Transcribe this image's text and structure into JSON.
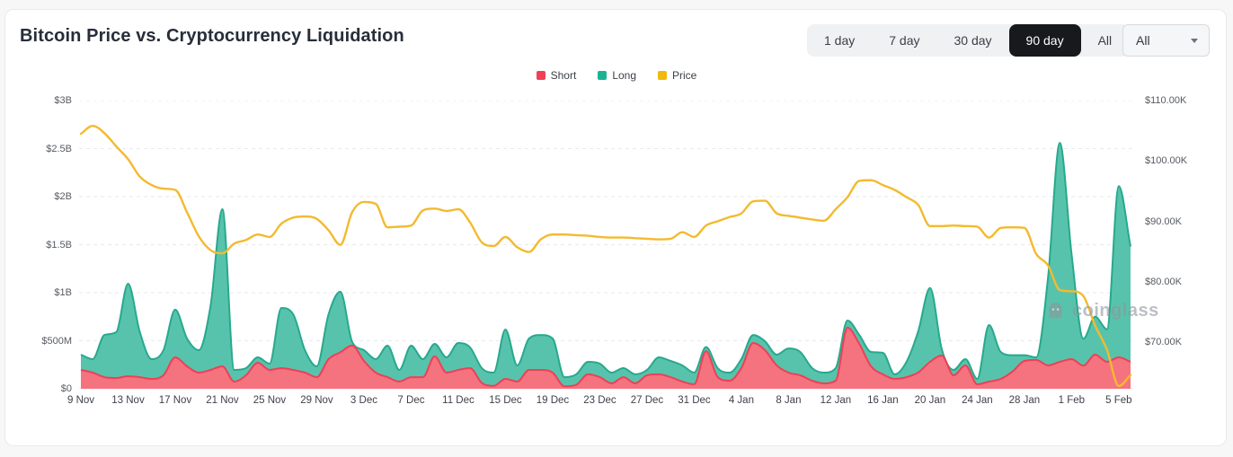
{
  "header": {
    "title": "Bitcoin Price vs. Cryptocurrency Liquidation"
  },
  "toolbar": {
    "ranges": [
      {
        "label": "1 day",
        "active": false
      },
      {
        "label": "7 day",
        "active": false
      },
      {
        "label": "30 day",
        "active": false
      },
      {
        "label": "90 day",
        "active": true
      },
      {
        "label": "All",
        "active": false
      }
    ],
    "dropdown_value": "All"
  },
  "legend": {
    "items": [
      {
        "label": "Short",
        "color": "#f04056"
      },
      {
        "label": "Long",
        "color": "#1cb394"
      },
      {
        "label": "Price",
        "color": "#f0b90b"
      }
    ]
  },
  "watermark": {
    "text": "coinglass"
  },
  "chart_data": {
    "type": "area",
    "title": "Bitcoin Price vs. Cryptocurrency Liquidation",
    "stacked": true,
    "grid": "horizontal-dashed",
    "left_axis": {
      "labels": [
        "$3B",
        "$2.5B",
        "$2B",
        "$1.5B",
        "$1B",
        "$500M",
        "$0"
      ],
      "values_usd_millions": [
        3000,
        2500,
        2000,
        1500,
        1000,
        500,
        0
      ]
    },
    "right_axis": {
      "labels": [
        "$110.00K",
        "$100.00K",
        "$90.00K",
        "$80.00K",
        "$70.00K"
      ],
      "values_usd_thousands": [
        110,
        100,
        90,
        80,
        70
      ]
    },
    "x_ticks": {
      "labels": [
        "9 Nov",
        "13 Nov",
        "17 Nov",
        "21 Nov",
        "25 Nov",
        "29 Nov",
        "3 Dec",
        "7 Dec",
        "11 Dec",
        "15 Dec",
        "19 Dec",
        "23 Dec",
        "27 Dec",
        "31 Dec",
        "4 Jan",
        "8 Jan",
        "12 Jan",
        "16 Jan",
        "20 Jan",
        "24 Jan",
        "28 Jan",
        "1 Feb",
        "5 Feb"
      ],
      "day_indices": [
        0,
        4,
        8,
        12,
        16,
        20,
        24,
        28,
        32,
        36,
        40,
        44,
        48,
        52,
        56,
        60,
        64,
        68,
        72,
        76,
        80,
        84,
        88
      ]
    },
    "series": [
      {
        "name": "Short",
        "axis": "left",
        "unit": "USD millions",
        "stroke": "#ee4056",
        "fill": "#f4737f",
        "values": [
          196,
          168,
          121,
          112,
          131,
          121,
          103,
          140,
          327,
          234,
          168,
          196,
          234,
          75,
          140,
          271,
          196,
          215,
          196,
          168,
          121,
          308,
          380,
          450,
          290,
          168,
          121,
          75,
          121,
          121,
          337,
          168,
          196,
          215,
          60,
          30,
          103,
          75,
          196,
          196,
          168,
          25,
          40,
          150,
          121,
          56,
          121,
          56,
          140,
          150,
          121,
          75,
          47,
          390,
          121,
          84,
          215,
          477,
          402,
          243,
          168,
          140,
          84,
          56,
          84,
          636,
          467,
          234,
          150,
          103,
          121,
          170,
          280,
          346,
          140,
          243,
          47,
          75,
          103,
          180,
          290,
          300,
          243,
          280,
          308,
          240,
          355,
          280,
          327,
          280
        ]
      },
      {
        "name": "Long",
        "axis": "left",
        "unit": "USD millions",
        "stack_on": "Short",
        "stroke": "#27a98d",
        "fill": "#58c3ac",
        "values": [
          159,
          140,
          439,
          478,
          962,
          469,
          205,
          262,
          496,
          289,
          234,
          673,
          1635,
          121,
          75,
          56,
          66,
          626,
          580,
          234,
          113,
          468,
          630,
          40,
          112,
          140,
          328,
          121,
          328,
          187,
          130,
          159,
          281,
          215,
          155,
          138,
          514,
          168,
          327,
          364,
          355,
          96,
          110,
          130,
          141,
          112,
          94,
          94,
          56,
          177,
          169,
          168,
          121,
          45,
          94,
          84,
          93,
          83,
          93,
          112,
          252,
          243,
          131,
          112,
          131,
          74,
          93,
          149,
          224,
          47,
          159,
          430,
          770,
          64,
          56,
          65,
          56,
          589,
          280,
          170,
          60,
          27,
          907,
          2280,
          1092,
          280,
          395,
          340,
          1783,
          1200
        ]
      },
      {
        "name": "Price",
        "axis": "right",
        "unit": "USD thousands",
        "stroke": "#f3ba2f",
        "values": [
          104.5,
          105.8,
          104.6,
          102.4,
          100.3,
          97.4,
          96.0,
          95.4,
          95.2,
          91.5,
          87.5,
          85.2,
          84.7,
          86.3,
          86.9,
          87.8,
          87.4,
          89.6,
          90.6,
          90.8,
          90.4,
          88.5,
          86.1,
          91.5,
          93.2,
          92.9,
          89.0,
          89.1,
          89.3,
          91.8,
          92.1,
          91.7,
          92.0,
          89.8,
          86.5,
          85.9,
          87.4,
          85.7,
          84.9,
          87.0,
          87.8,
          87.8,
          87.7,
          87.6,
          87.4,
          87.3,
          87.3,
          87.2,
          87.1,
          87.0,
          87.1,
          88.2,
          87.4,
          89.3,
          90.0,
          90.7,
          91.3,
          93.3,
          93.4,
          91.3,
          90.9,
          90.6,
          90.3,
          90.1,
          92.0,
          94.0,
          96.7,
          96.8,
          96.0,
          95.2,
          94.0,
          92.7,
          89.2,
          89.2,
          89.3,
          89.2,
          89.1,
          87.3,
          88.9,
          89.0,
          88.9,
          84.6,
          82.7,
          78.6,
          78.4,
          77.6,
          72.7,
          68.7,
          62.7,
          64.5
        ]
      }
    ],
    "left_axis_range_usd_millions": [
      0,
      3000
    ],
    "right_axis_range_usd_thousands_top": 110
  }
}
